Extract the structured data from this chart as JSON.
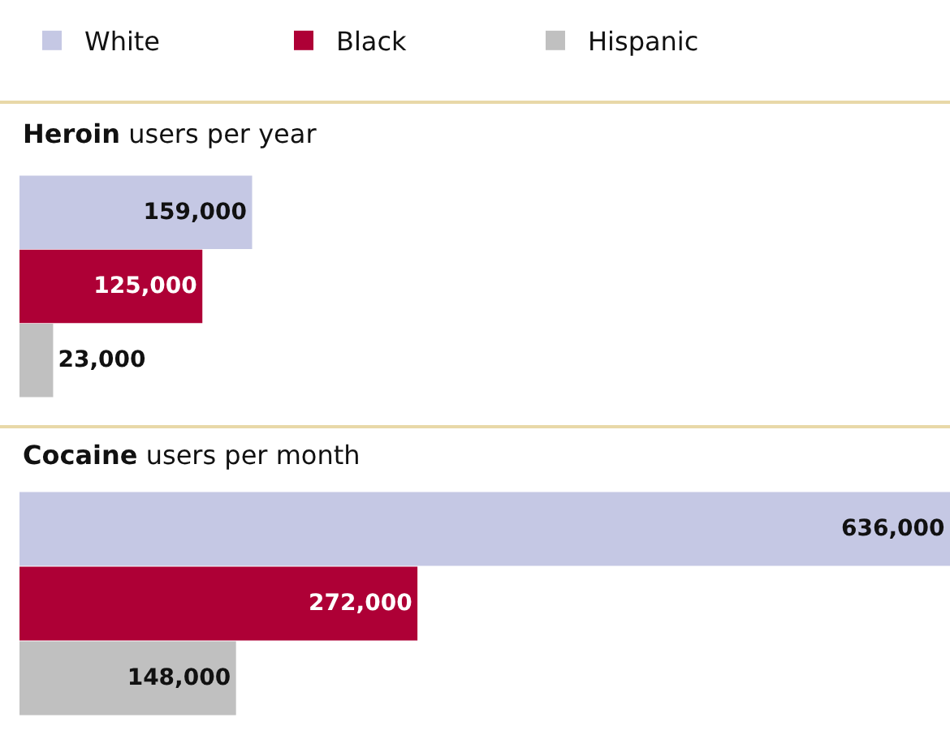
{
  "chart_data": [
    {
      "type": "bar",
      "orientation": "horizontal",
      "title": "Heroin users per year",
      "categories": [
        null
      ],
      "xlim": [
        0,
        636000
      ],
      "legend": "top",
      "series": [
        {
          "name": "White",
          "color": "#c5c8e4",
          "values": [
            159000
          ],
          "value_labels": [
            "159,000"
          ]
        },
        {
          "name": "Black",
          "color": "#ae0036",
          "values": [
            125000
          ],
          "value_labels": [
            "125,000"
          ]
        },
        {
          "name": "Hispanic",
          "color": "#c0c0c0",
          "values": [
            23000
          ],
          "value_labels": [
            "23,000"
          ]
        }
      ]
    },
    {
      "type": "bar",
      "orientation": "horizontal",
      "title": "Cocaine users per month",
      "categories": [
        null
      ],
      "xlim": [
        0,
        636000
      ],
      "series": [
        {
          "color": "#c5c8e4",
          "values": [
            636000
          ],
          "value_labels": [
            "636,000"
          ]
        },
        {
          "color": "#ae0036",
          "values": [
            272000
          ],
          "value_labels": [
            "272,000"
          ]
        },
        {
          "color": "#c0c0c0",
          "values": [
            148000
          ],
          "value_labels": [
            "148,000"
          ]
        }
      ]
    }
  ]
}
